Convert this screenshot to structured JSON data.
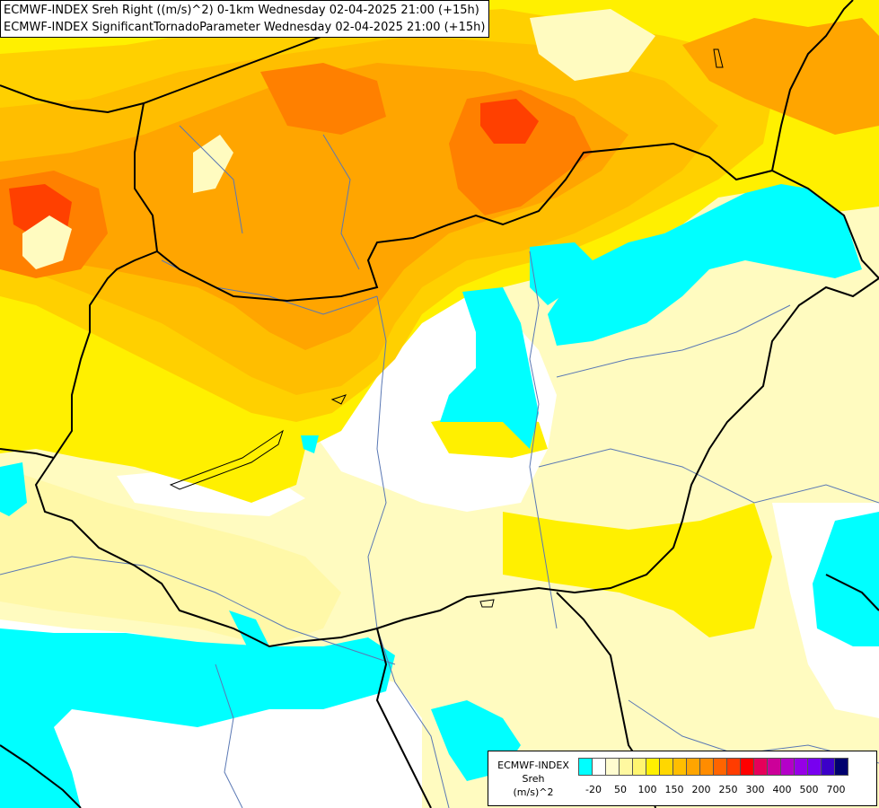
{
  "titles": {
    "line1": "ECMWF-INDEX Sreh Right ((m/s)^2) 0-1km Wednesday 02-04-2025 21:00 (+15h)",
    "line2": "ECMWF-INDEX SignificantTornadoParameter Wednesday 02-04-2025 21:00 (+15h)"
  },
  "legend": {
    "title1": "ECMWF-INDEX",
    "title2": "Sreh",
    "title3": "(m/s)^2",
    "colors": [
      "#00ffff",
      "#ffffff",
      "#fffcd0",
      "#fff8a0",
      "#fff570",
      "#fff000",
      "#ffd700",
      "#ffbe00",
      "#ffa500",
      "#ff8c00",
      "#ff6400",
      "#ff3c00",
      "#ff0000",
      "#e6005a",
      "#cc0099",
      "#b400c8",
      "#9600e6",
      "#7800f0",
      "#3c00c8",
      "#00006e"
    ],
    "ticks": [
      "-20",
      "50",
      "100",
      "150",
      "200",
      "250",
      "300",
      "400",
      "500",
      "700"
    ]
  },
  "map_colors": {
    "background": "#fffbc0",
    "white": "#ffffff",
    "pale_yellow": "#fff8a8",
    "yellow": "#fff000",
    "gold": "#ffd000",
    "amber": "#ffbe00",
    "orange": "#ffa500",
    "dark_orange": "#ff8000",
    "red": "#ff4000",
    "cyan": "#00ffff",
    "borders": "#000000",
    "rivers": "#5a78b4"
  }
}
